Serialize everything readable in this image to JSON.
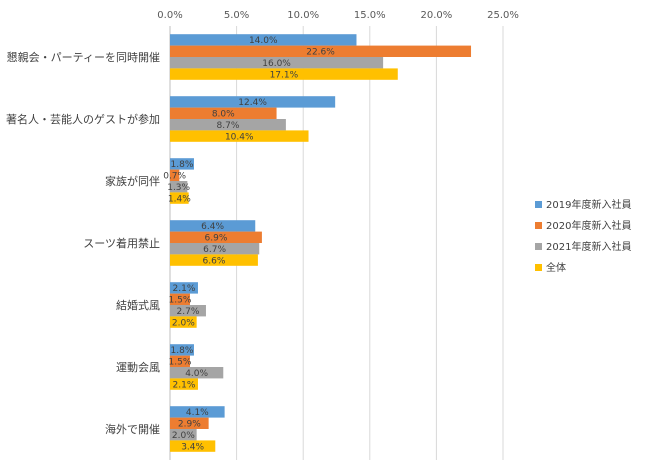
{
  "chart_data": {
    "type": "bar",
    "orientation": "horizontal",
    "title": "",
    "xlabel": "",
    "ylabel": "",
    "xlim": [
      0,
      25
    ],
    "x_ticks": [
      "0.0%",
      "5.0%",
      "10.0%",
      "15.0%",
      "20.0%",
      "25.0%"
    ],
    "x_axis_position": "top",
    "grid": true,
    "legend_position": "right",
    "categories": [
      "懇親会・パーティーを同時開催",
      "著名人・芸能人のゲストが参加",
      "家族が同伴",
      "スーツ着用禁止",
      "結婚式風",
      "運動会風",
      "海外で開催"
    ],
    "series": [
      {
        "name": "2019年度新入社員",
        "color": "#5b9bd5",
        "values": [
          14.0,
          12.4,
          1.8,
          6.4,
          2.1,
          1.8,
          4.1
        ],
        "labels": [
          "14.0%",
          "12.4%",
          "1.8%",
          "6.4%",
          "2.1%",
          "1.8%",
          "4.1%"
        ]
      },
      {
        "name": "2020年度新入社員",
        "color": "#ed7d31",
        "values": [
          22.6,
          8.0,
          0.7,
          6.9,
          1.5,
          1.5,
          2.9
        ],
        "labels": [
          "22.6%",
          "8.0%",
          "0.7%",
          "6.9%",
          "1.5%",
          "1.5%",
          "2.9%"
        ]
      },
      {
        "name": "2021年度新入社員",
        "color": "#a5a5a5",
        "values": [
          16.0,
          8.7,
          1.3,
          6.7,
          2.7,
          4.0,
          2.0
        ],
        "labels": [
          "16.0%",
          "8.7%",
          "1.3%",
          "6.7%",
          "2.7%",
          "4.0%",
          "2.0%"
        ]
      },
      {
        "name": "全体",
        "color": "#ffc000",
        "values": [
          17.1,
          10.4,
          1.4,
          6.6,
          2.0,
          2.1,
          3.4
        ],
        "labels": [
          "17.1%",
          "10.4%",
          "1.4%",
          "6.6%",
          "2.0%",
          "2.1%",
          "3.4%"
        ]
      }
    ]
  }
}
